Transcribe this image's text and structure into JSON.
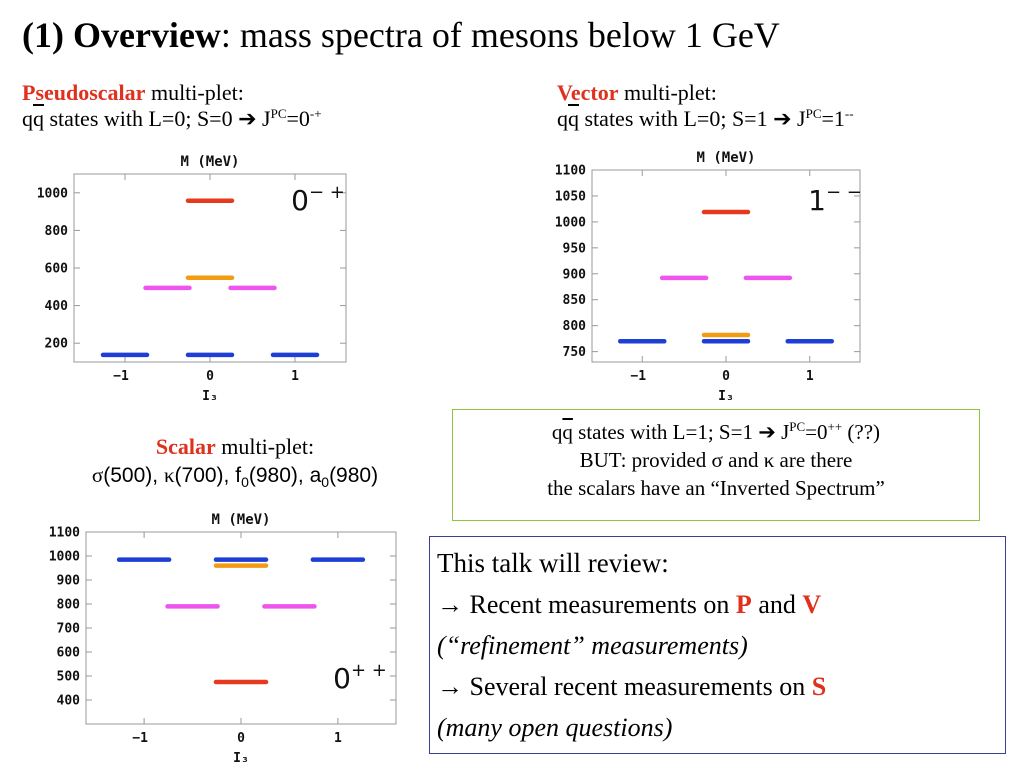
{
  "title": {
    "bold": "(1) Overview",
    "rest": ": mass spectra of mesons below 1 GeV"
  },
  "pseudoscalar": {
    "label_red": "Pseudoscalar",
    "label_rest": " multi-plet:",
    "states_prefix": "q",
    "states_overline": "q",
    "states_text": " states with L=0; S=0 ",
    "arrow": "➔",
    "j": " J",
    "pc": "PC",
    "eq": "=0",
    "jpc_sup": "-+"
  },
  "vector": {
    "label_red": "Vector",
    "label_rest": " multi-plet:",
    "states_prefix": "q",
    "states_overline": "q",
    "states_text": " states with L=0; S=1 ",
    "arrow": "➔",
    "j": " J",
    "pc": "PC",
    "eq": "=1",
    "jpc_sup": "--"
  },
  "scalar": {
    "label_red": "Scalar",
    "label_rest": " multi-plet:",
    "p1": "σ",
    "p1v": "(500), ",
    "p2": "κ",
    "p2v": "(700), ",
    "p3": "f",
    "p3sub": "0",
    "p3v": "(980), ",
    "p4": "a",
    "p4sub": "0",
    "p4v": "(980)"
  },
  "green_box": {
    "line1_prefix": "q",
    "line1_overline": "q",
    "line1_text": " states with L=1; S=1 ",
    "arrow": "➔",
    "j": " J",
    "pc": "PC",
    "eq": "=0",
    "sup": "++",
    "tail": " (??)",
    "line2": "BUT: provided σ  and κ  are there",
    "line3": "the scalars have an “Inverted Spectrum”"
  },
  "blue_box": {
    "line1": "This talk will review:",
    "arrow": "→",
    "line2_text": " Recent measurements on ",
    "p": "P",
    "and": " and ",
    "v": "V",
    "line3": "(“refinement” measurements)",
    "line4_text": " Several recent measurements on ",
    "s": "S",
    "line5": "(many open questions)"
  },
  "colors": {
    "red": "#e63a1e",
    "orange": "#f39c12",
    "magenta": "#ee55ee",
    "blue": "#1d3fd6"
  },
  "chart_data": [
    {
      "type": "scatter",
      "name": "pseudoscalar",
      "title": "M (MeV)",
      "xlabel": "I₃",
      "xlim": [
        -1.6,
        1.6
      ],
      "ylim": [
        100,
        1100
      ],
      "xticks": [
        -1,
        0,
        1
      ],
      "yticks": [
        200,
        400,
        600,
        800,
        1000
      ],
      "label": {
        "base": "0",
        "sup": "− +"
      },
      "levels": [
        {
          "x": -1,
          "y": 138,
          "color": "blue"
        },
        {
          "x": 0,
          "y": 138,
          "color": "blue"
        },
        {
          "x": 1,
          "y": 138,
          "color": "blue"
        },
        {
          "x": -0.5,
          "y": 494,
          "color": "magenta"
        },
        {
          "x": 0.5,
          "y": 494,
          "color": "magenta"
        },
        {
          "x": 0,
          "y": 548,
          "color": "orange"
        },
        {
          "x": 0,
          "y": 958,
          "color": "red"
        }
      ]
    },
    {
      "type": "scatter",
      "name": "vector",
      "title": "M (MeV)",
      "xlabel": "I₃",
      "xlim": [
        -1.6,
        1.6
      ],
      "ylim": [
        730,
        1100
      ],
      "xticks": [
        -1,
        0,
        1
      ],
      "yticks": [
        750,
        800,
        850,
        900,
        950,
        1000,
        1050,
        1100
      ],
      "label": {
        "base": "1",
        "sup": "− −"
      },
      "levels": [
        {
          "x": -1,
          "y": 770,
          "color": "blue"
        },
        {
          "x": 0,
          "y": 770,
          "color": "blue"
        },
        {
          "x": 1,
          "y": 770,
          "color": "blue"
        },
        {
          "x": 0,
          "y": 782,
          "color": "orange"
        },
        {
          "x": -0.5,
          "y": 892,
          "color": "magenta"
        },
        {
          "x": 0.5,
          "y": 892,
          "color": "magenta"
        },
        {
          "x": 0,
          "y": 1019,
          "color": "red"
        }
      ]
    },
    {
      "type": "scatter",
      "name": "scalar",
      "title": "M (MeV)",
      "xlabel": "I₃",
      "xlim": [
        -1.6,
        1.6
      ],
      "ylim": [
        300,
        1100
      ],
      "xticks": [
        -1,
        0,
        1
      ],
      "yticks": [
        400,
        500,
        600,
        700,
        800,
        900,
        1000,
        1100
      ],
      "label": {
        "base": "0",
        "sup": "+ +"
      },
      "levels": [
        {
          "x": -1,
          "y": 985,
          "color": "blue"
        },
        {
          "x": 0,
          "y": 985,
          "color": "blue"
        },
        {
          "x": 1,
          "y": 985,
          "color": "blue"
        },
        {
          "x": 0,
          "y": 960,
          "color": "orange"
        },
        {
          "x": -0.5,
          "y": 790,
          "color": "magenta"
        },
        {
          "x": 0.5,
          "y": 790,
          "color": "magenta"
        },
        {
          "x": 0,
          "y": 475,
          "color": "red"
        }
      ]
    }
  ]
}
